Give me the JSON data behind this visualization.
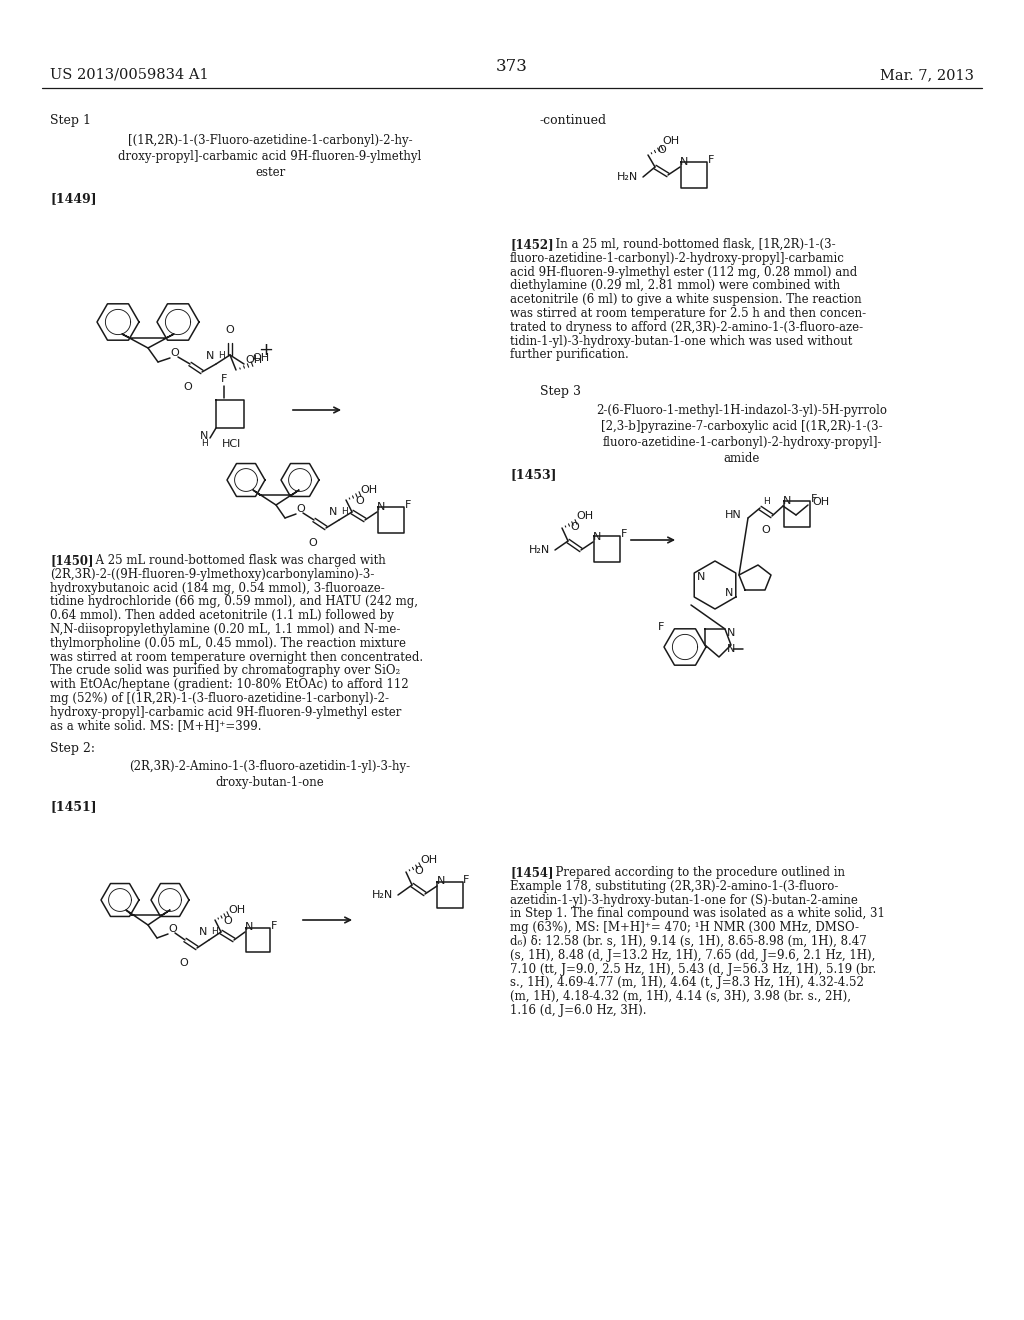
{
  "page_number": "373",
  "patent_number": "US 2013/0059834 A1",
  "date": "Mar. 7, 2013",
  "continued_label": "-continued",
  "bg": "#ffffff",
  "ink": "#1a1a1a",
  "step1_label": "Step 1",
  "step2_label": "Step 2:",
  "step3_label": "Step 3",
  "tag_1449": "[1449]",
  "tag_1450": "[1450]",
  "tag_1451": "[1451]",
  "tag_1452": "[1452]",
  "tag_1453": "[1453]",
  "tag_1454": "[1454]",
  "name_step1_L1": "[(1R,2R)-1-(3-Fluoro-azetidine-1-carbonyl)-2-hy-",
  "name_step1_L2": "droxy-propyl]-carbamic acid 9H-fluoren-9-ylmethyl",
  "name_step1_L3": "ester",
  "name_step2_L1": "(2R,3R)-2-Amino-1-(3-fluoro-azetidin-1-yl)-3-hy-",
  "name_step2_L2": "droxy-butan-1-one",
  "name_step3_L1": "2-(6-Fluoro-1-methyl-1H-indazol-3-yl)-5H-pyrrolo",
  "name_step3_L2": "[2,3-b]pyrazine-7-carboxylic acid [(1R,2R)-1-(3-",
  "name_step3_L3": "fluoro-azetidine-1-carbonyl)-2-hydroxy-propyl]-",
  "name_step3_L4": "amide",
  "para_1450_L01": "[1450]  A 25 mL round-bottomed flask was charged with",
  "para_1450_L02": "(2R,3R)-2-((9H-fluoren-9-ylmethoxy)carbonylamino)-3-",
  "para_1450_L03": "hydroxybutanoic acid (184 mg, 0.54 mmol), 3-fluoroaze-",
  "para_1450_L04": "tidine hydrochloride (66 mg, 0.59 mmol), and HATU (242 mg,",
  "para_1450_L05": "0.64 mmol). Then added acetonitrile (1.1 mL) followed by",
  "para_1450_L06": "N,N-diisopropylethylamine (0.20 mL, 1.1 mmol) and N-me-",
  "para_1450_L07": "thylmorpholine (0.05 mL, 0.45 mmol). The reaction mixture",
  "para_1450_L08": "was stirred at room temperature overnight then concentrated.",
  "para_1450_L09": "The crude solid was purified by chromatography over SiO₂",
  "para_1450_L10": "with EtOAc/heptane (gradient: 10-80% EtOAc) to afford 112",
  "para_1450_L11": "mg (52%) of [(1R,2R)-1-(3-fluoro-azetidine-1-carbonyl)-2-",
  "para_1450_L12": "hydroxy-propyl]-carbamic acid 9H-fluoren-9-ylmethyl ester",
  "para_1450_L13": "as a white solid. MS: [M+H]⁺=399.",
  "para_1452_L1": "[1452]  In a 25 ml, round-bottomed flask, [1R,2R)-1-(3-",
  "para_1452_L2": "fluoro-azetidine-1-carbonyl)-2-hydroxy-propyl]-carbamic",
  "para_1452_L3": "acid 9H-fluoren-9-ylmethyl ester (112 mg, 0.28 mmol) and",
  "para_1452_L4": "diethylamine (0.29 ml, 2.81 mmol) were combined with",
  "para_1452_L5": "acetonitrile (6 ml) to give a white suspension. The reaction",
  "para_1452_L6": "was stirred at room temperature for 2.5 h and then concen-",
  "para_1452_L7": "trated to dryness to afford (2R,3R)-2-amino-1-(3-fluoro-aze-",
  "para_1452_L8": "tidin-1-yl)-3-hydroxy-butan-1-one which was used without",
  "para_1452_L9": "further purification.",
  "para_1454_L01": "[1454]  Prepared according to the procedure outlined in",
  "para_1454_L02": "Example 178, substituting (2R,3R)-2-amino-1-(3-fluoro-",
  "para_1454_L03": "azetidin-1-yl)-3-hydroxy-butan-1-one for (S)-butan-2-amine",
  "para_1454_L04": "in Step 1. The final compound was isolated as a white solid, 31",
  "para_1454_L05": "mg (63%), MS: [M+H]⁺= 470; ¹H NMR (300 MHz, DMSO-",
  "para_1454_L06": "d₆) δ: 12.58 (br. s, 1H), 9.14 (s, 1H), 8.65-8.98 (m, 1H), 8.47",
  "para_1454_L07": "(s, 1H), 8.48 (d, J=13.2 Hz, 1H), 7.65 (dd, J=9.6, 2.1 Hz, 1H),",
  "para_1454_L08": "7.10 (tt, J=9.0, 2.5 Hz, 1H), 5.43 (d, J=56.3 Hz, 1H), 5.19 (br.",
  "para_1454_L09": "s., 1H), 4.69-4.77 (m, 1H), 4.64 (t, J=8.3 Hz, 1H), 4.32-4.52",
  "para_1454_L10": "(m, 1H), 4.18-4.32 (m, 1H), 4.14 (s, 3H), 3.98 (br. s., 2H),",
  "para_1454_L11": "1.16 (d, J=6.0 Hz, 3H)."
}
